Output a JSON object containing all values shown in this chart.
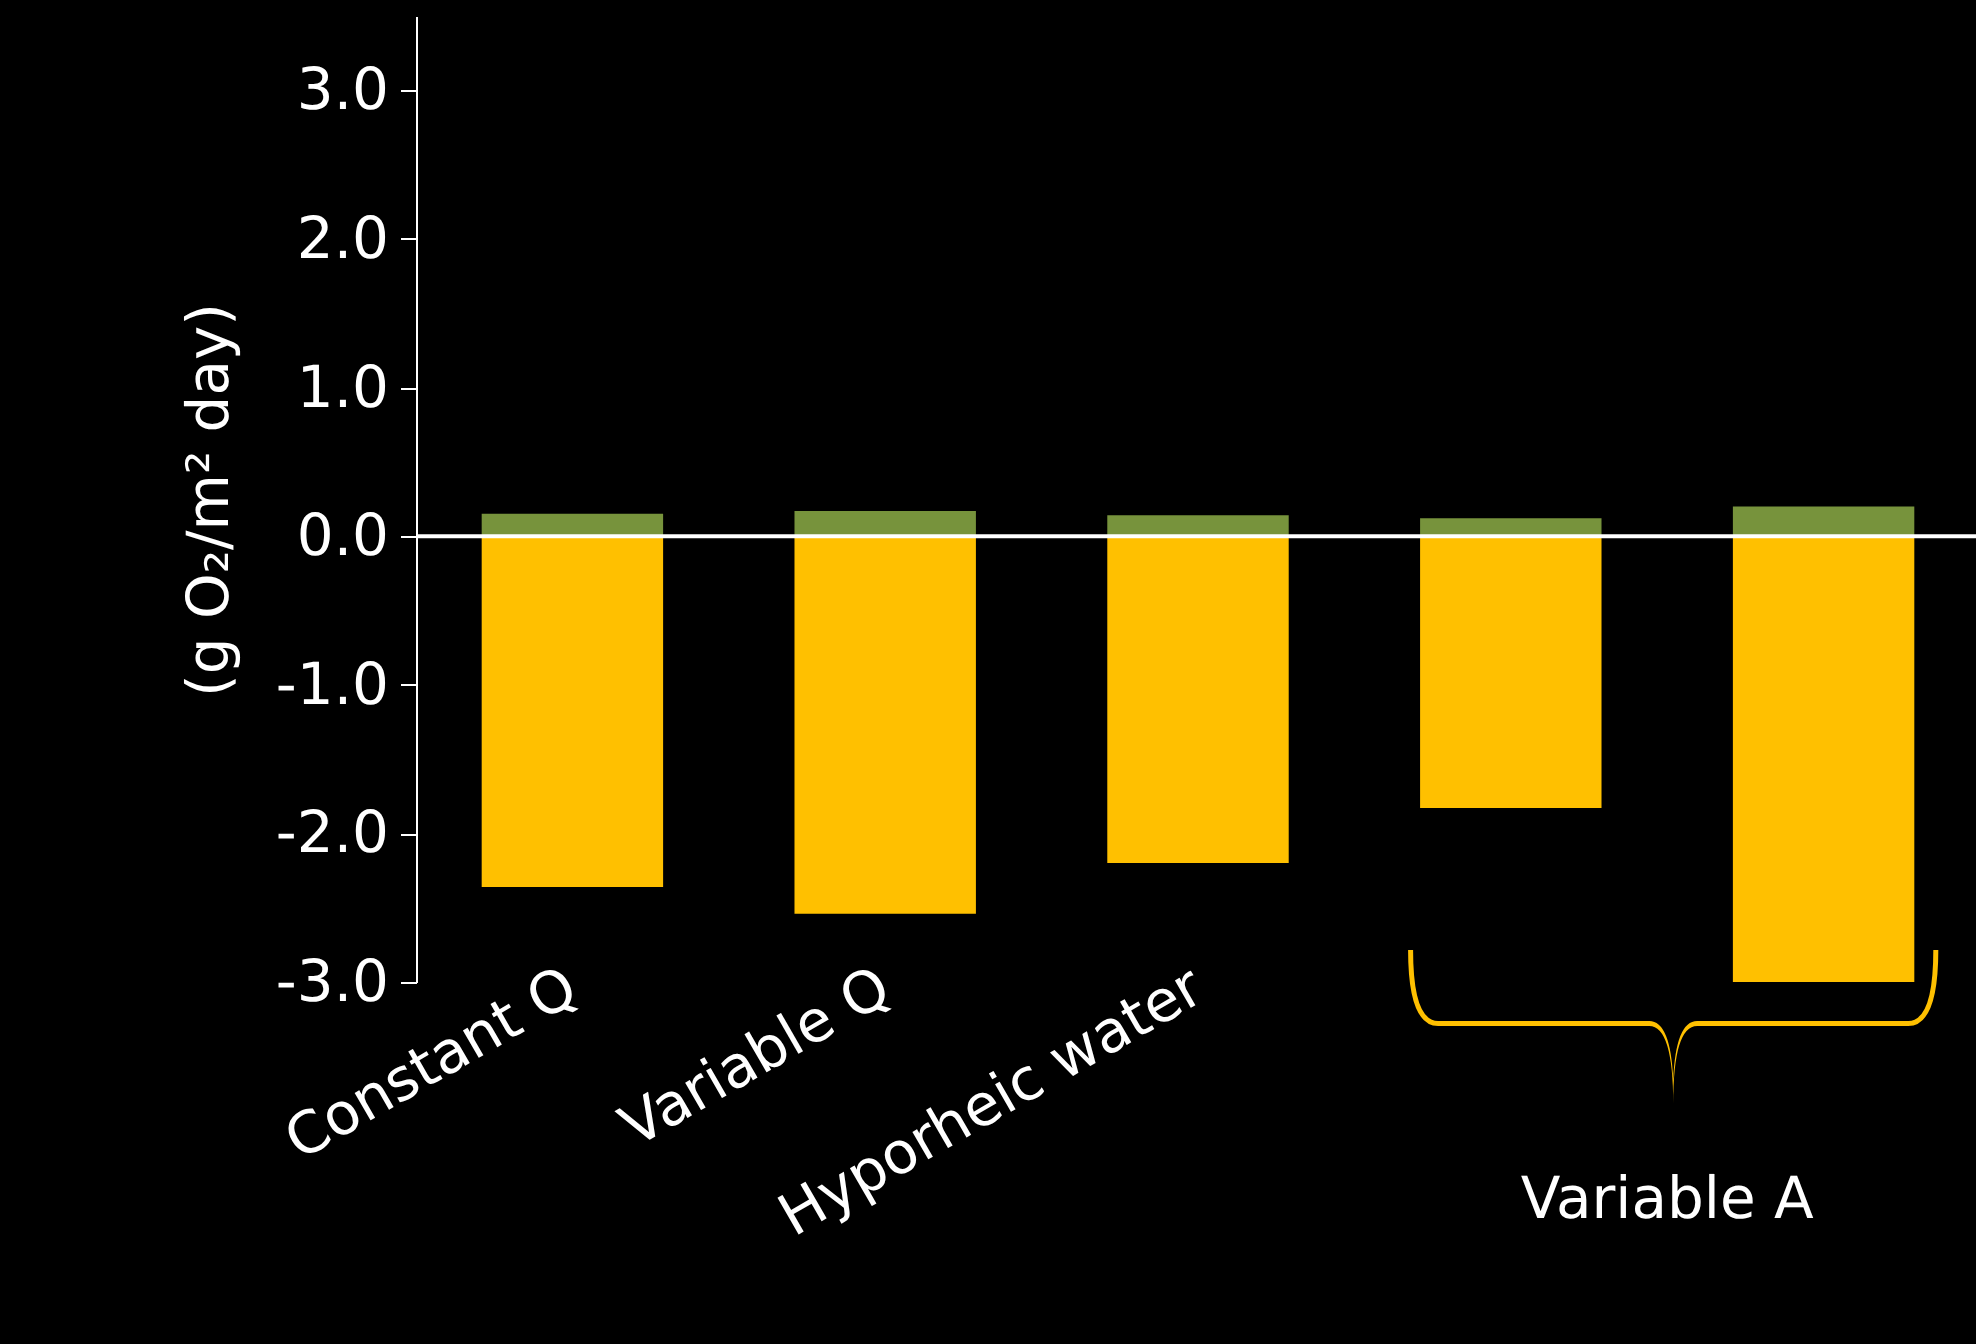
{
  "chart_data": {
    "type": "bar",
    "stacked": true,
    "ylabel": "(g O₂/m² day)",
    "categories": [
      "Constant Q",
      "Variable Q",
      "Hyporheic water",
      null,
      null
    ],
    "series": [
      {
        "color": "#77933c",
        "values": [
          0.15,
          0.17,
          0.14,
          0.12,
          0.2
        ]
      },
      {
        "color": "#ffc000",
        "values": [
          -2.36,
          -2.54,
          -2.2,
          -1.83,
          -3.0
        ]
      }
    ],
    "ylim": [
      -3,
      3.5
    ],
    "yticks": [
      {
        "value": 3,
        "label": "3.0"
      },
      {
        "value": 2,
        "label": "2.0"
      },
      {
        "value": 1,
        "label": "1.0"
      },
      {
        "value": 0,
        "label": "0.0"
      },
      {
        "value": -1,
        "label": "-1.0"
      },
      {
        "value": -2,
        "label": "-2.0"
      },
      {
        "value": -3,
        "label": "-3.0"
      }
    ],
    "grid": false,
    "ref_lines": [
      {
        "axis": "y",
        "value": 0,
        "color": "#ffffff"
      }
    ],
    "annotations": [
      "Variable A"
    ]
  }
}
